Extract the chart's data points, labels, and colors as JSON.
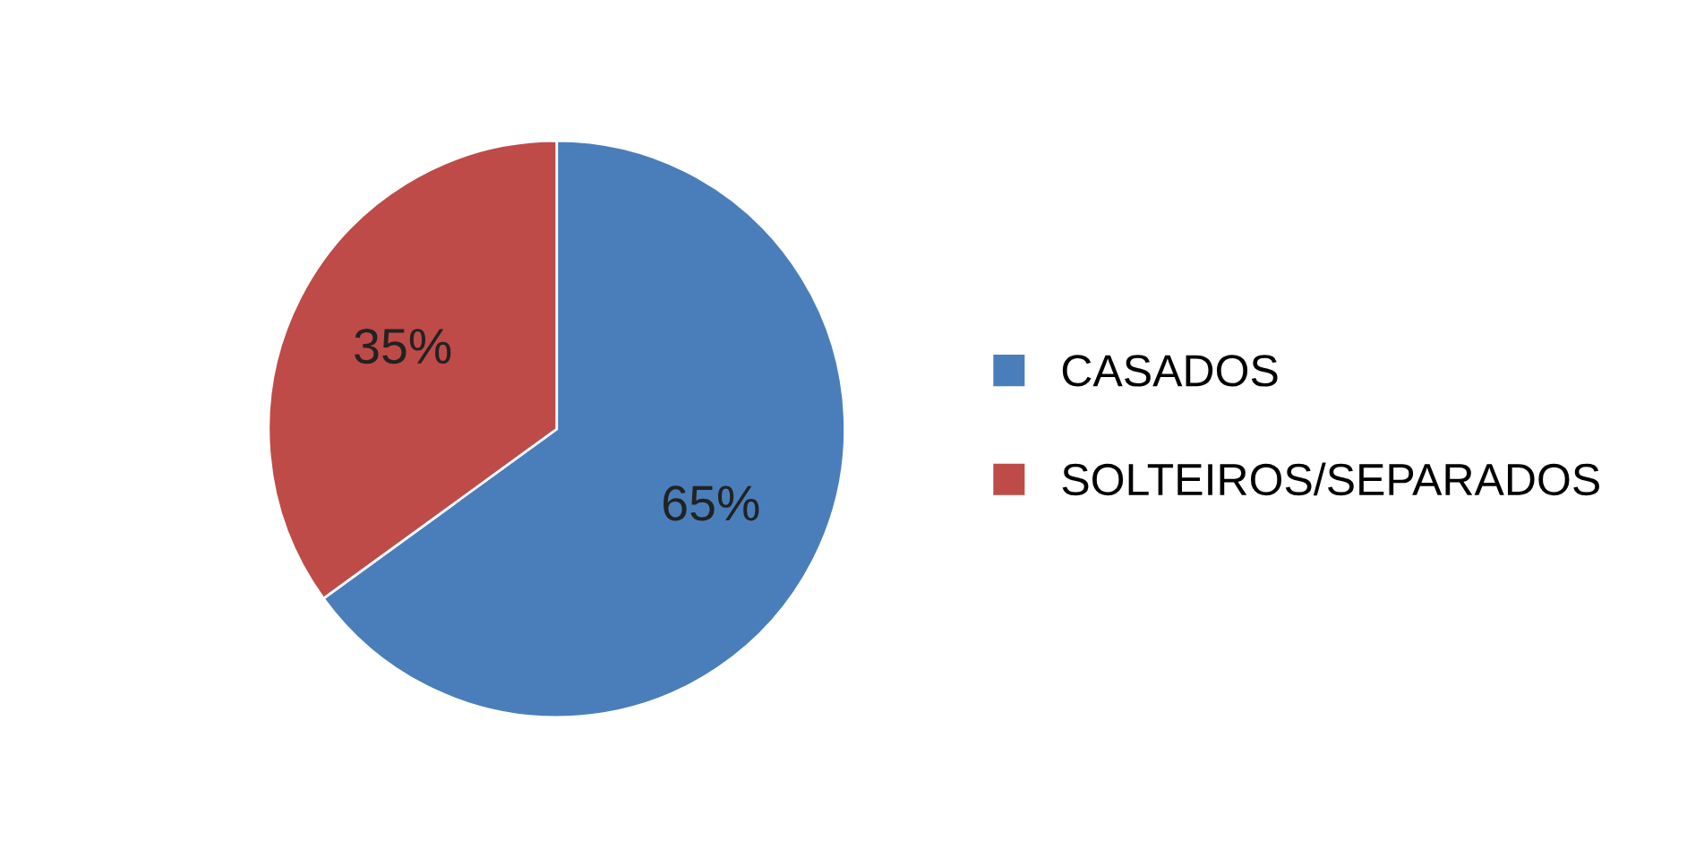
{
  "chart_data": {
    "type": "pie",
    "categories": [
      "CASADOS",
      "SOLTEIROS/SEPARADOS"
    ],
    "values": [
      65,
      35
    ],
    "value_labels": [
      "65%",
      "35%"
    ],
    "colors": [
      "#4a7ebb",
      "#be4b48"
    ],
    "legend": "right"
  }
}
